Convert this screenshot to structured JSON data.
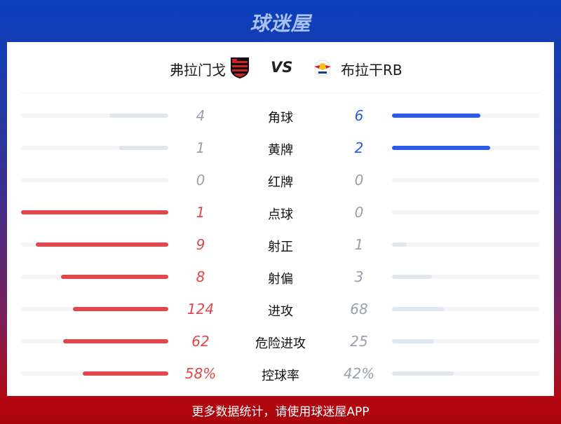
{
  "header": {
    "logo_text": "球迷屋"
  },
  "match": {
    "home": "弗拉门戈",
    "away": "布拉干RB",
    "vs": "VS"
  },
  "colors": {
    "home": "#e0474c",
    "away": "#2a5ae8",
    "loser": "#e2e7ef",
    "track": "#f3f4f6",
    "home_text": "#e0474c",
    "away_text": "#2a5ae8",
    "neutral_text": "#9aa0ab"
  },
  "stats": [
    {
      "label": "角球",
      "home": "4",
      "away": "6"
    },
    {
      "label": "黄牌",
      "home": "1",
      "away": "2"
    },
    {
      "label": "红牌",
      "home": "0",
      "away": "0"
    },
    {
      "label": "点球",
      "home": "1",
      "away": "0"
    },
    {
      "label": "射正",
      "home": "9",
      "away": "1"
    },
    {
      "label": "射偏",
      "home": "8",
      "away": "3"
    },
    {
      "label": "进攻",
      "home": "124",
      "away": "68"
    },
    {
      "label": "危险进攻",
      "home": "62",
      "away": "25"
    },
    {
      "label": "控球率",
      "home": "58%",
      "away": "42%"
    }
  ],
  "footer": {
    "text": "更多数据统计，请使用球迷屋APP"
  }
}
